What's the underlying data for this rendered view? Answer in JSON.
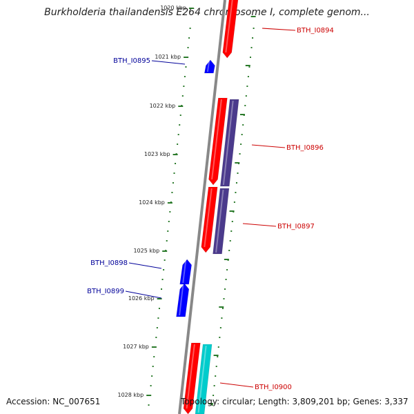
{
  "title": "Burkholderia thailandensis E264 chromosome I, complete genom...",
  "footer": {
    "accession": "Accession: NC_007651",
    "summary": "Topology: circular; Length: 3,809,201 bp; Genes: 3,337"
  },
  "ticks": [
    {
      "label": "1020 kbp"
    },
    {
      "label": "1021 kbp"
    },
    {
      "label": "1022 kbp"
    },
    {
      "label": "1023 kbp"
    },
    {
      "label": "1024 kbp"
    },
    {
      "label": "1025 kbp"
    },
    {
      "label": "1026 kbp"
    },
    {
      "label": "1027 kbp"
    },
    {
      "label": "1028 kbp"
    }
  ],
  "genes": [
    {
      "name": "BTH_I0894",
      "strand": "forward",
      "color": "#ff0000"
    },
    {
      "name": "BTH_I0895",
      "strand": "reverse",
      "color": "#0000ff"
    },
    {
      "name": "BTH_I0896",
      "strand": "forward",
      "color": "#ff0000"
    },
    {
      "name": "BTH_I0897",
      "strand": "forward",
      "color": "#ff0000"
    },
    {
      "name": "BTH_I0898",
      "strand": "reverse",
      "color": "#0000ff"
    },
    {
      "name": "BTH_I0899",
      "strand": "reverse",
      "color": "#0000ff"
    },
    {
      "name": "BTH_I0900",
      "strand": "forward",
      "color": "#ff0000"
    }
  ],
  "colors": {
    "forward_label": "#cc0000",
    "reverse_label": "#000099",
    "cds_feature": "#4b3a8c",
    "rrna_feature": "#00cccc",
    "backbone": "#888888",
    "tick": "#2a7a2a"
  }
}
